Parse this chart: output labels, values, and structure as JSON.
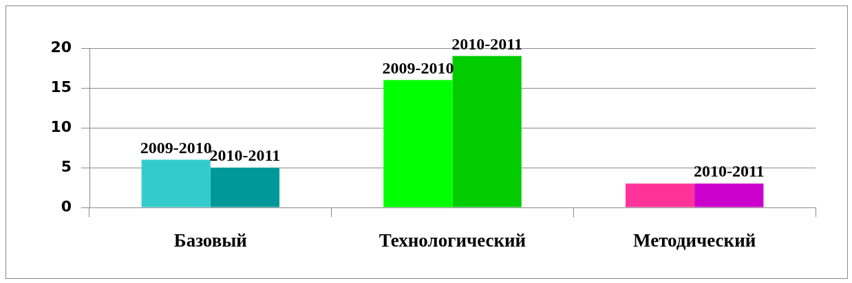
{
  "chart_data": {
    "type": "bar",
    "categories": [
      "Базовый",
      "Технологический",
      "Методический"
    ],
    "series": [
      {
        "colors": [
          "#33cccc",
          "#00ff00",
          "#ff3399"
        ],
        "values": [
          6,
          16,
          3
        ],
        "value_labels": [
          "2009-2010",
          "2009-2010",
          null
        ]
      },
      {
        "colors": [
          "#009999",
          "#00cc00",
          "#cc00cc"
        ],
        "values": [
          5,
          19,
          3
        ],
        "value_labels": [
          "2010-2011",
          "2010-2011",
          "2010-2011"
        ]
      }
    ],
    "ylim": [
      0,
      20
    ],
    "yticks": [
      0,
      5,
      10,
      15,
      20
    ],
    "grid": "y",
    "legend": false
  }
}
